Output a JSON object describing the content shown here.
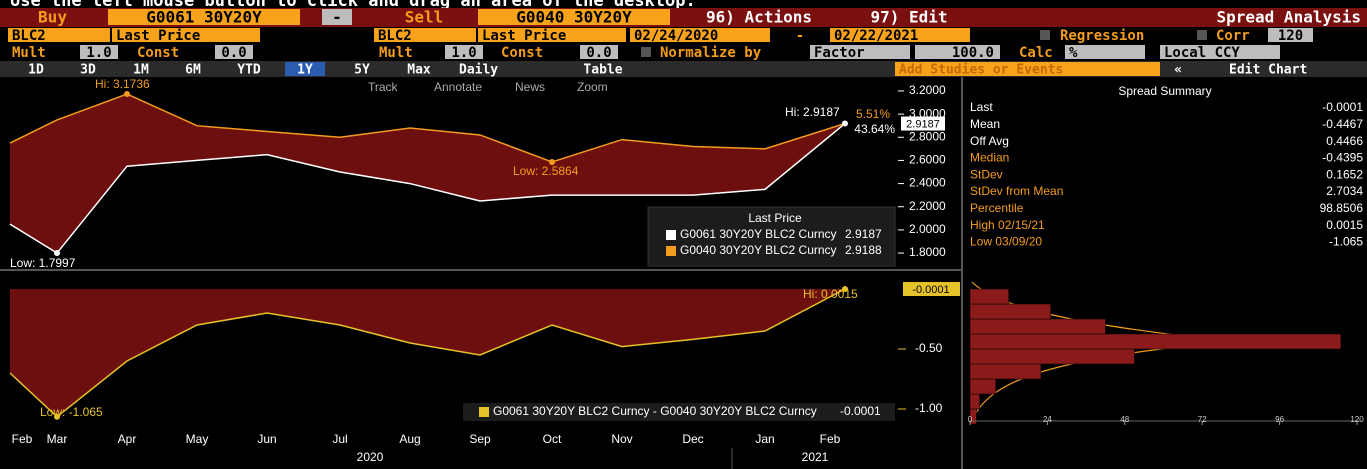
{
  "banner": "Use the left mouse button to click and drag an area of the desktop.",
  "toolbar": {
    "row1": [
      "Buy",
      "G0061 30Y20Y",
      "-",
      "Sell",
      "G0040 30Y20Y",
      "96) Actions",
      "97) Edit",
      "Spread Analysis"
    ],
    "row2": [
      "BLC2",
      "Last Price",
      "BLC2",
      "Last Price",
      "02/24/2020",
      "-",
      "02/22/2021",
      "Regression",
      "Corr",
      "120"
    ],
    "row3": [
      "Mult",
      "1.0",
      "Const",
      "0.0",
      "Mult",
      "1.0",
      "Const",
      "0.0",
      "Normalize by",
      "Factor",
      "100.0",
      "Calc",
      "%",
      "Local CCY"
    ],
    "row4": [
      "1D",
      "3D",
      "1M",
      "6M",
      "YTD",
      "1Y",
      "5Y",
      "Max",
      "Daily",
      "Table",
      "Add Studies or Events",
      "«",
      "Edit Chart"
    ]
  },
  "chart_tools": [
    "Track",
    "Annotate",
    "News",
    "Zoom"
  ],
  "chart_data": [
    {
      "type": "line",
      "legend_title": "Last Price",
      "series": [
        {
          "name": "G0061 30Y20Y BLC2 Curncy",
          "color": "#ffffff",
          "values": [
            2.05,
            1.7997,
            2.55,
            2.6,
            2.65,
            2.5,
            2.4,
            2.25,
            2.3,
            2.3,
            2.3,
            2.35,
            2.9187
          ]
        },
        {
          "name": "G0040 30Y20Y BLC2 Curncy",
          "color": "#f39c1e",
          "values": [
            2.75,
            2.95,
            3.1736,
            2.9,
            2.85,
            2.8,
            2.88,
            2.82,
            2.5864,
            2.78,
            2.72,
            2.7,
            2.9188
          ]
        }
      ],
      "ylim": [
        1.7,
        3.3
      ],
      "yticks": [
        {
          "value": 1.8,
          "label": "1.8000"
        },
        {
          "value": 2.0,
          "label": "2.0000"
        },
        {
          "value": 2.2,
          "label": "2.2000"
        },
        {
          "value": 2.4,
          "label": "2.4000"
        },
        {
          "value": 2.6,
          "label": "2.6000"
        },
        {
          "value": 2.8,
          "label": "2.8000"
        },
        {
          "value": 3.0,
          "label": "3.0000"
        },
        {
          "value": 3.2,
          "label": "3.2000"
        }
      ],
      "annotations": [
        "Hi: 3.1736",
        "Low: 1.7997",
        "Low: 2.5864",
        "Hi: 2.9187",
        "5.51%",
        "43.64%"
      ]
    },
    {
      "type": "area",
      "categories": [
        "Feb",
        "Mar",
        "Apr",
        "May",
        "Jun",
        "Jul",
        "Aug",
        "Sep",
        "Oct",
        "Nov",
        "Dec",
        "Jan",
        "Feb"
      ],
      "year_labels": [
        "2020",
        "2021"
      ],
      "series": [
        {
          "name": "G0061 30Y20Y BLC2 Curncy - G0040 30Y20Y BLC2 Curncy",
          "color": "#e6c229",
          "values": [
            -0.7,
            -1.065,
            -0.6,
            -0.3,
            -0.2,
            -0.3,
            -0.45,
            -0.55,
            -0.3,
            -0.48,
            -0.42,
            -0.35,
            -0.0001
          ]
        }
      ],
      "ylim": [
        -1.15,
        0.1
      ],
      "yticks": [
        {
          "value": -1,
          "label": "-1.00"
        },
        {
          "value": -0.5,
          "label": "-0.50"
        }
      ],
      "annotations": [
        "Hi: 0.0015",
        "Low: -1.065"
      ]
    },
    {
      "type": "histogram",
      "bins": [
        -1.125,
        -1.0,
        -0.875,
        -0.75,
        -0.625,
        -0.5,
        -0.375,
        -0.25,
        -0.125,
        0.0
      ],
      "counts": [
        2,
        3,
        8,
        22,
        51,
        115,
        42,
        25,
        12
      ],
      "color": "#8b1a1a",
      "xlim": [
        0,
        120
      ],
      "xticks": [
        0,
        24,
        48,
        72,
        96,
        120
      ]
    }
  ],
  "summary": {
    "title": "Spread Summary",
    "rows": [
      [
        "Last",
        "-0.0001"
      ],
      [
        "Mean",
        "-0.4467"
      ],
      [
        "Off Avg",
        "0.4466"
      ],
      [
        "Median",
        "-0.4395"
      ],
      [
        "StDev",
        "0.1652"
      ],
      [
        "StDev from Mean",
        "2.7034"
      ],
      [
        "Percentile",
        "98.8506"
      ],
      [
        "High 02/15/21",
        "0.0015"
      ],
      [
        "Low 03/09/20",
        "-1.065"
      ]
    ]
  }
}
